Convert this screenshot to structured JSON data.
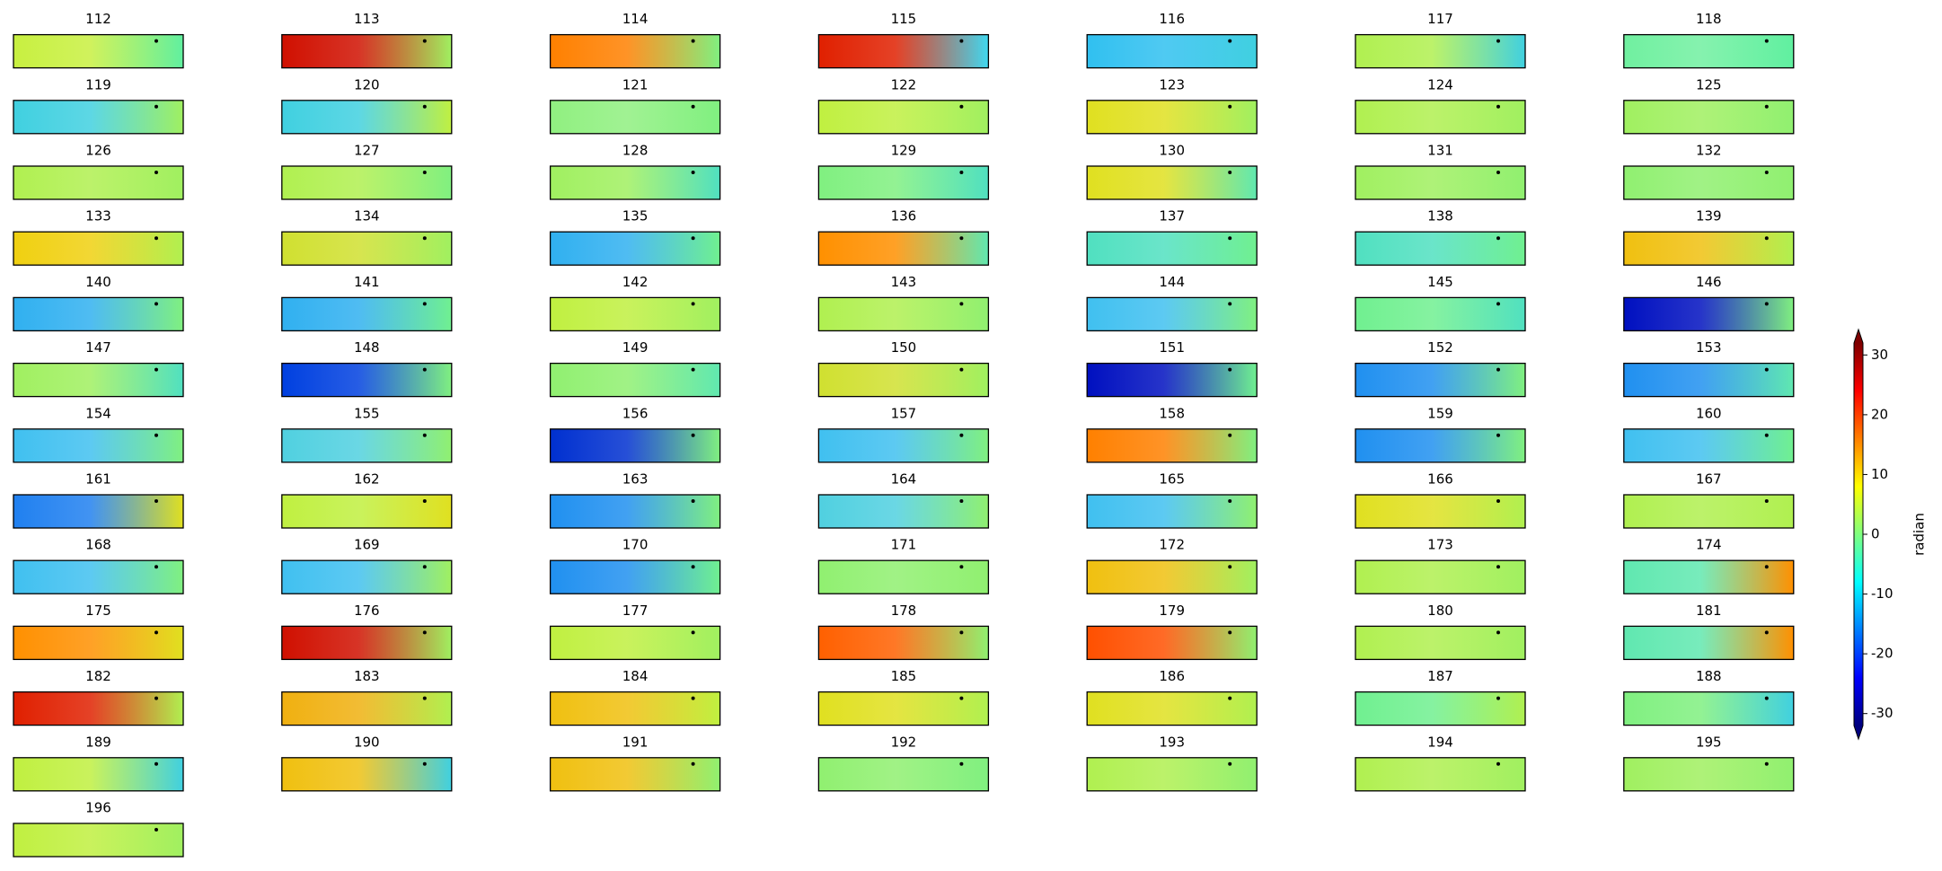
{
  "chart_data": {
    "type": "image-grid",
    "panels": [
      {
        "title": "112",
        "colors": [
          "#c8f040",
          "#60f0a0"
        ]
      },
      {
        "title": "113",
        "colors": [
          "#d01000",
          "#a0f060"
        ]
      },
      {
        "title": "114",
        "colors": [
          "#ff8000",
          "#80f080"
        ]
      },
      {
        "title": "115",
        "colors": [
          "#e02000",
          "#40d8f0"
        ]
      },
      {
        "title": "116",
        "colors": [
          "#30c0f0",
          "#40d0e0"
        ]
      },
      {
        "title": "117",
        "colors": [
          "#b0f050",
          "#40d0e0"
        ]
      },
      {
        "title": "118",
        "colors": [
          "#70f0a0",
          "#60f0a0"
        ]
      },
      {
        "title": "119",
        "colors": [
          "#40d0e0",
          "#a0f060"
        ]
      },
      {
        "title": "120",
        "colors": [
          "#40d0e0",
          "#c0f040"
        ]
      },
      {
        "title": "121",
        "colors": [
          "#90f080",
          "#80f080"
        ]
      },
      {
        "title": "122",
        "colors": [
          "#c0f040",
          "#a0f060"
        ]
      },
      {
        "title": "123",
        "colors": [
          "#e0e020",
          "#a0f060"
        ]
      },
      {
        "title": "124",
        "colors": [
          "#b0f050",
          "#a0f060"
        ]
      },
      {
        "title": "125",
        "colors": [
          "#a0f060",
          "#90f070"
        ]
      },
      {
        "title": "126",
        "colors": [
          "#b0f050",
          "#a0f060"
        ]
      },
      {
        "title": "127",
        "colors": [
          "#b0f050",
          "#80f080"
        ]
      },
      {
        "title": "128",
        "colors": [
          "#a0f060",
          "#50e0c0"
        ]
      },
      {
        "title": "129",
        "colors": [
          "#80f080",
          "#50e0c0"
        ]
      },
      {
        "title": "130",
        "colors": [
          "#e0e020",
          "#60e8b0"
        ]
      },
      {
        "title": "131",
        "colors": [
          "#a0f060",
          "#90f070"
        ]
      },
      {
        "title": "132",
        "colors": [
          "#90f070",
          "#90f070"
        ]
      },
      {
        "title": "133",
        "colors": [
          "#f0d010",
          "#b0f050"
        ]
      },
      {
        "title": "134",
        "colors": [
          "#d0e030",
          "#a0f060"
        ]
      },
      {
        "title": "135",
        "colors": [
          "#30b0f0",
          "#70f090"
        ]
      },
      {
        "title": "136",
        "colors": [
          "#ff9000",
          "#60e8b0"
        ]
      },
      {
        "title": "137",
        "colors": [
          "#50e0c0",
          "#70f090"
        ]
      },
      {
        "title": "138",
        "colors": [
          "#50e0c0",
          "#70f090"
        ]
      },
      {
        "title": "139",
        "colors": [
          "#f0c010",
          "#b0f050"
        ]
      },
      {
        "title": "140",
        "colors": [
          "#30b0f0",
          "#80f080"
        ]
      },
      {
        "title": "141",
        "colors": [
          "#30b0f0",
          "#70f090"
        ]
      },
      {
        "title": "142",
        "colors": [
          "#c0f040",
          "#a0f060"
        ]
      },
      {
        "title": "143",
        "colors": [
          "#b0f050",
          "#90f070"
        ]
      },
      {
        "title": "144",
        "colors": [
          "#40c0f0",
          "#80f080"
        ]
      },
      {
        "title": "145",
        "colors": [
          "#70f090",
          "#50e0c0"
        ]
      },
      {
        "title": "146",
        "colors": [
          "#0010c0",
          "#80f080"
        ]
      },
      {
        "title": "147",
        "colors": [
          "#a0f060",
          "#50e0c0"
        ]
      },
      {
        "title": "148",
        "colors": [
          "#0040e0",
          "#80f080"
        ]
      },
      {
        "title": "149",
        "colors": [
          "#90f070",
          "#60e8b0"
        ]
      },
      {
        "title": "150",
        "colors": [
          "#d0e030",
          "#a0f060"
        ]
      },
      {
        "title": "151",
        "colors": [
          "#0010c0",
          "#70f090"
        ]
      },
      {
        "title": "152",
        "colors": [
          "#2090f0",
          "#80f080"
        ]
      },
      {
        "title": "153",
        "colors": [
          "#2090f0",
          "#60e8b0"
        ]
      },
      {
        "title": "154",
        "colors": [
          "#40c0f0",
          "#80f080"
        ]
      },
      {
        "title": "155",
        "colors": [
          "#50d0e0",
          "#90f070"
        ]
      },
      {
        "title": "156",
        "colors": [
          "#0030d0",
          "#80f080"
        ]
      },
      {
        "title": "157",
        "colors": [
          "#40c0f0",
          "#80f080"
        ]
      },
      {
        "title": "158",
        "colors": [
          "#ff8000",
          "#80f080"
        ]
      },
      {
        "title": "159",
        "colors": [
          "#2090f0",
          "#80f080"
        ]
      },
      {
        "title": "160",
        "colors": [
          "#40c0f0",
          "#70f090"
        ]
      },
      {
        "title": "161",
        "colors": [
          "#2080f0",
          "#e0e020"
        ]
      },
      {
        "title": "162",
        "colors": [
          "#c0f040",
          "#e0e020"
        ]
      },
      {
        "title": "163",
        "colors": [
          "#2090f0",
          "#80f080"
        ]
      },
      {
        "title": "164",
        "colors": [
          "#50d0e0",
          "#90f070"
        ]
      },
      {
        "title": "165",
        "colors": [
          "#40c0f0",
          "#90f070"
        ]
      },
      {
        "title": "166",
        "colors": [
          "#e0e020",
          "#b0f050"
        ]
      },
      {
        "title": "167",
        "colors": [
          "#b0f050",
          "#b0f050"
        ]
      },
      {
        "title": "168",
        "colors": [
          "#40c0f0",
          "#80f080"
        ]
      },
      {
        "title": "169",
        "colors": [
          "#40c0f0",
          "#a0f060"
        ]
      },
      {
        "title": "170",
        "colors": [
          "#2090f0",
          "#70f090"
        ]
      },
      {
        "title": "171",
        "colors": [
          "#90f070",
          "#90f070"
        ]
      },
      {
        "title": "172",
        "colors": [
          "#f0c010",
          "#a0f060"
        ]
      },
      {
        "title": "173",
        "colors": [
          "#b0f050",
          "#a0f060"
        ]
      },
      {
        "title": "174",
        "colors": [
          "#60e8b0",
          "#ff9000"
        ]
      },
      {
        "title": "175",
        "colors": [
          "#ff9000",
          "#e0e020"
        ]
      },
      {
        "title": "176",
        "colors": [
          "#d01000",
          "#a0f060"
        ]
      },
      {
        "title": "177",
        "colors": [
          "#c0f040",
          "#a0f060"
        ]
      },
      {
        "title": "178",
        "colors": [
          "#ff6000",
          "#90f070"
        ]
      },
      {
        "title": "179",
        "colors": [
          "#ff5000",
          "#90f070"
        ]
      },
      {
        "title": "180",
        "colors": [
          "#b0f050",
          "#a0f060"
        ]
      },
      {
        "title": "181",
        "colors": [
          "#60e8b0",
          "#ff9000"
        ]
      },
      {
        "title": "182",
        "colors": [
          "#e02000",
          "#b0f050"
        ]
      },
      {
        "title": "183",
        "colors": [
          "#f0b010",
          "#b0f050"
        ]
      },
      {
        "title": "184",
        "colors": [
          "#f0c010",
          "#c0f040"
        ]
      },
      {
        "title": "185",
        "colors": [
          "#e0e020",
          "#b0f050"
        ]
      },
      {
        "title": "186",
        "colors": [
          "#e0e020",
          "#b0f050"
        ]
      },
      {
        "title": "187",
        "colors": [
          "#70f090",
          "#b0f050"
        ]
      },
      {
        "title": "188",
        "colors": [
          "#80f080",
          "#40d0e0"
        ]
      },
      {
        "title": "189",
        "colors": [
          "#c0f040",
          "#40d0e0"
        ]
      },
      {
        "title": "190",
        "colors": [
          "#f0c010",
          "#40d0e0"
        ]
      },
      {
        "title": "191",
        "colors": [
          "#f0c010",
          "#90f070"
        ]
      },
      {
        "title": "192",
        "colors": [
          "#90f070",
          "#80f080"
        ]
      },
      {
        "title": "193",
        "colors": [
          "#b0f050",
          "#90f070"
        ]
      },
      {
        "title": "194",
        "colors": [
          "#b0f050",
          "#a0f060"
        ]
      },
      {
        "title": "195",
        "colors": [
          "#a0f060",
          "#90f070"
        ]
      },
      {
        "title": "196",
        "colors": [
          "#c0f040",
          "#a0f060"
        ]
      }
    ],
    "colorbar": {
      "label": "radian",
      "ylim": [
        -32,
        32
      ],
      "yticks": [
        -30,
        -20,
        -10,
        0,
        10,
        20,
        30
      ],
      "colormap": [
        "#00007f",
        "#0000ff",
        "#007fff",
        "#00ffff",
        "#7fff7f",
        "#ffff00",
        "#ff7f00",
        "#ff0000",
        "#7f0000"
      ]
    }
  }
}
